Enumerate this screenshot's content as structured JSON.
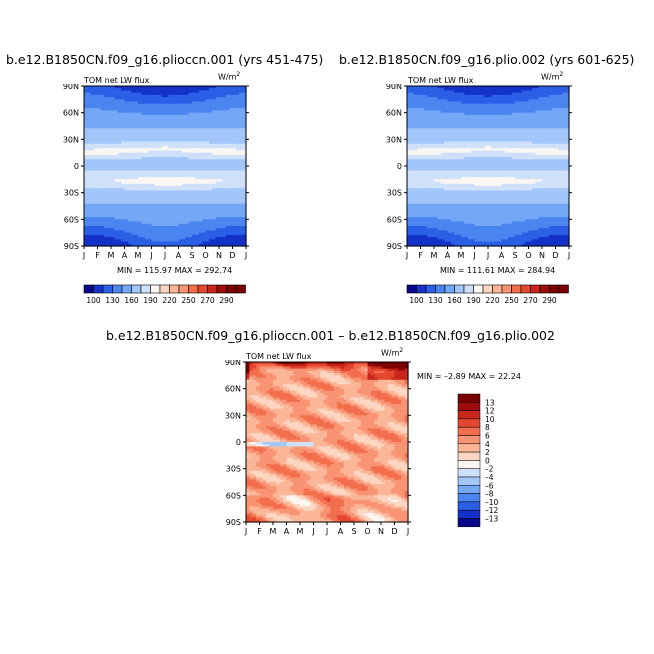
{
  "chart_data": [
    {
      "type": "heatmap",
      "title": "b.e12.B1850CN.f09_g16.plioccn.001 (yrs 451-475)",
      "left_label": "TOM net LW flux",
      "units_base": "W/m",
      "units_exp": "2",
      "x_ticks": [
        "J",
        "F",
        "M",
        "A",
        "M",
        "J",
        "J",
        "A",
        "S",
        "O",
        "N",
        "D",
        "J"
      ],
      "y_ticks": [
        "90N",
        "60N",
        "30N",
        "0",
        "30S",
        "60S",
        "90S"
      ],
      "stats": "MIN = 115.97 MAX = 292.74",
      "min": 115.97,
      "max": 292.74,
      "levels": [
        100,
        130,
        160,
        190,
        220,
        250,
        270,
        290
      ],
      "colorbar_labels": [
        "100",
        "130",
        "160",
        "190",
        "220",
        "250",
        "270",
        "290"
      ],
      "peaks": {
        "nh_tropics_lat": 18,
        "sh_tropics_lat": -18,
        "sh_peak_month": 7.2,
        "sh_peak_value": 292
      }
    },
    {
      "type": "heatmap",
      "title": "b.e12.B1850CN.f09_g16.plio.002 (yrs 601-625)",
      "left_label": "TOM net LW flux",
      "units_base": "W/m",
      "units_exp": "2",
      "x_ticks": [
        "J",
        "F",
        "M",
        "A",
        "M",
        "J",
        "J",
        "A",
        "S",
        "O",
        "N",
        "D",
        "J"
      ],
      "y_ticks": [
        "90N",
        "60N",
        "30N",
        "0",
        "30S",
        "60S",
        "90S"
      ],
      "stats": "MIN = 111.61 MAX = 284.94",
      "min": 111.61,
      "max": 284.94,
      "levels": [
        100,
        130,
        160,
        190,
        220,
        250,
        270,
        290
      ],
      "colorbar_labels": [
        "100",
        "130",
        "160",
        "190",
        "220",
        "250",
        "270",
        "290"
      ],
      "peaks": {
        "nh_tropics_lat": 18,
        "sh_tropics_lat": -18,
        "sh_peak_month": 7.0,
        "sh_peak_value": 284
      }
    },
    {
      "type": "heatmap",
      "title": "b.e12.B1850CN.f09_g16.plioccn.001 – b.e12.B1850CN.f09_g16.plio.002",
      "left_label": "TOM net LW flux",
      "units_base": "W/m",
      "units_exp": "2",
      "x_ticks": [
        "J",
        "F",
        "M",
        "A",
        "M",
        "J",
        "J",
        "A",
        "S",
        "O",
        "N",
        "D",
        "J"
      ],
      "y_ticks": [
        "90N",
        "60N",
        "30N",
        "0",
        "30S",
        "60S",
        "90S"
      ],
      "stats": "MIN = –2.89 MAX =  22.24",
      "min": -2.89,
      "max": 22.24,
      "levels": [
        -13,
        -12,
        -10,
        -8,
        -6,
        -4,
        -2,
        0,
        2,
        4,
        6,
        8,
        10,
        12,
        13
      ],
      "colorbar_labels": [
        "13",
        "12",
        "10",
        "8",
        "6",
        "4",
        "2",
        "0",
        "–2",
        "–4",
        "–6",
        "–8",
        "–10",
        "–12",
        "–13"
      ]
    }
  ],
  "colors": {
    "scale": [
      "#08088a",
      "#1432c8",
      "#2a5fe6",
      "#4a85f0",
      "#74a8f6",
      "#a2c6fa",
      "#cfe0fa",
      "#fbf6f2",
      "#fcd6c2",
      "#fbb698",
      "#f89473",
      "#f26e4d",
      "#e4472f",
      "#c8261a",
      "#9c0c0a",
      "#7a0000"
    ]
  }
}
